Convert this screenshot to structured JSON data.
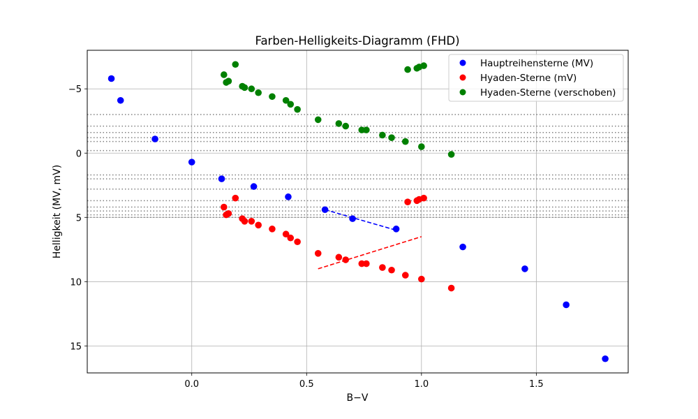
{
  "chart_data": {
    "type": "scatter",
    "title": "Farben-Helligkeits-Diagramm (FHD)",
    "xlabel": "B−V",
    "ylabel": "Helligkeit (MV, mV)",
    "xlim": [
      -0.455,
      1.9
    ],
    "ylim": [
      17.1,
      -8.0
    ],
    "y_inverted": true,
    "grid": true,
    "legend_position": "top-right",
    "x_ticks": [
      {
        "value": 0.0,
        "label": "0.0"
      },
      {
        "value": 0.5,
        "label": "0.5"
      },
      {
        "value": 1.0,
        "label": "1.0"
      },
      {
        "value": 1.5,
        "label": "1.5"
      }
    ],
    "y_ticks": [
      {
        "value": -5,
        "label": "−5"
      },
      {
        "value": 0,
        "label": "0"
      },
      {
        "value": 5,
        "label": "5"
      },
      {
        "value": 10,
        "label": "10"
      },
      {
        "value": 15,
        "label": "15"
      }
    ],
    "series": [
      {
        "name": "Hauptreihensterne (MV)",
        "color": "#0000ff",
        "points": [
          [
            -0.35,
            -5.8
          ],
          [
            -0.31,
            -4.1
          ],
          [
            -0.16,
            -1.1
          ],
          [
            0.0,
            0.7
          ],
          [
            0.13,
            2.0
          ],
          [
            0.27,
            2.6
          ],
          [
            0.42,
            3.4
          ],
          [
            0.58,
            4.4
          ],
          [
            0.7,
            5.1
          ],
          [
            0.89,
            5.9
          ],
          [
            1.18,
            7.3
          ],
          [
            1.45,
            9.0
          ],
          [
            1.63,
            11.8
          ],
          [
            1.8,
            16.0
          ]
        ]
      },
      {
        "name": "Hyaden-Sterne (mV)",
        "color": "#ff0000",
        "points": [
          [
            0.14,
            4.2
          ],
          [
            0.15,
            4.8
          ],
          [
            0.16,
            4.7
          ],
          [
            0.19,
            3.5
          ],
          [
            0.22,
            5.1
          ],
          [
            0.23,
            5.3
          ],
          [
            0.26,
            5.3
          ],
          [
            0.29,
            5.6
          ],
          [
            0.35,
            5.9
          ],
          [
            0.41,
            6.3
          ],
          [
            0.43,
            6.6
          ],
          [
            0.46,
            6.9
          ],
          [
            0.55,
            7.8
          ],
          [
            0.64,
            8.1
          ],
          [
            0.67,
            8.3
          ],
          [
            0.74,
            8.6
          ],
          [
            0.76,
            8.6
          ],
          [
            0.83,
            8.9
          ],
          [
            0.87,
            9.1
          ],
          [
            0.93,
            9.5
          ],
          [
            1.0,
            9.8
          ],
          [
            1.13,
            10.5
          ],
          [
            0.94,
            3.8
          ],
          [
            0.98,
            3.7
          ],
          [
            0.99,
            3.6
          ],
          [
            1.01,
            3.5
          ]
        ]
      },
      {
        "name": "Hyaden-Sterne (verschoben)",
        "color": "#008000",
        "points": [
          [
            0.14,
            -6.1
          ],
          [
            0.15,
            -5.5
          ],
          [
            0.16,
            -5.6
          ],
          [
            0.19,
            -6.9
          ],
          [
            0.22,
            -5.2
          ],
          [
            0.23,
            -5.1
          ],
          [
            0.26,
            -5.0
          ],
          [
            0.29,
            -4.7
          ],
          [
            0.35,
            -4.4
          ],
          [
            0.41,
            -4.1
          ],
          [
            0.43,
            -3.8
          ],
          [
            0.46,
            -3.4
          ],
          [
            0.55,
            -2.6
          ],
          [
            0.64,
            -2.3
          ],
          [
            0.67,
            -2.1
          ],
          [
            0.74,
            -1.8
          ],
          [
            0.76,
            -1.8
          ],
          [
            0.83,
            -1.4
          ],
          [
            0.87,
            -1.2
          ],
          [
            0.93,
            -0.9
          ],
          [
            1.0,
            -0.5
          ],
          [
            1.13,
            0.1
          ],
          [
            0.94,
            -6.5
          ],
          [
            0.98,
            -6.6
          ],
          [
            0.99,
            -6.7
          ],
          [
            1.01,
            -6.8
          ]
        ]
      }
    ],
    "dashed_lines": [
      {
        "color": "#0000ff",
        "from": [
          0.58,
          4.4
        ],
        "to": [
          0.89,
          6.0
        ]
      },
      {
        "color": "#ff0000",
        "from": [
          0.55,
          9.0
        ],
        "to": [
          1.0,
          6.5
        ]
      }
    ],
    "dotted_hlines": [
      -3.0,
      -2.1,
      -1.6,
      -1.2,
      -0.9,
      -0.2,
      1.7,
      2.0,
      2.8,
      3.7,
      4.2,
      4.5,
      4.8,
      5.0
    ]
  }
}
